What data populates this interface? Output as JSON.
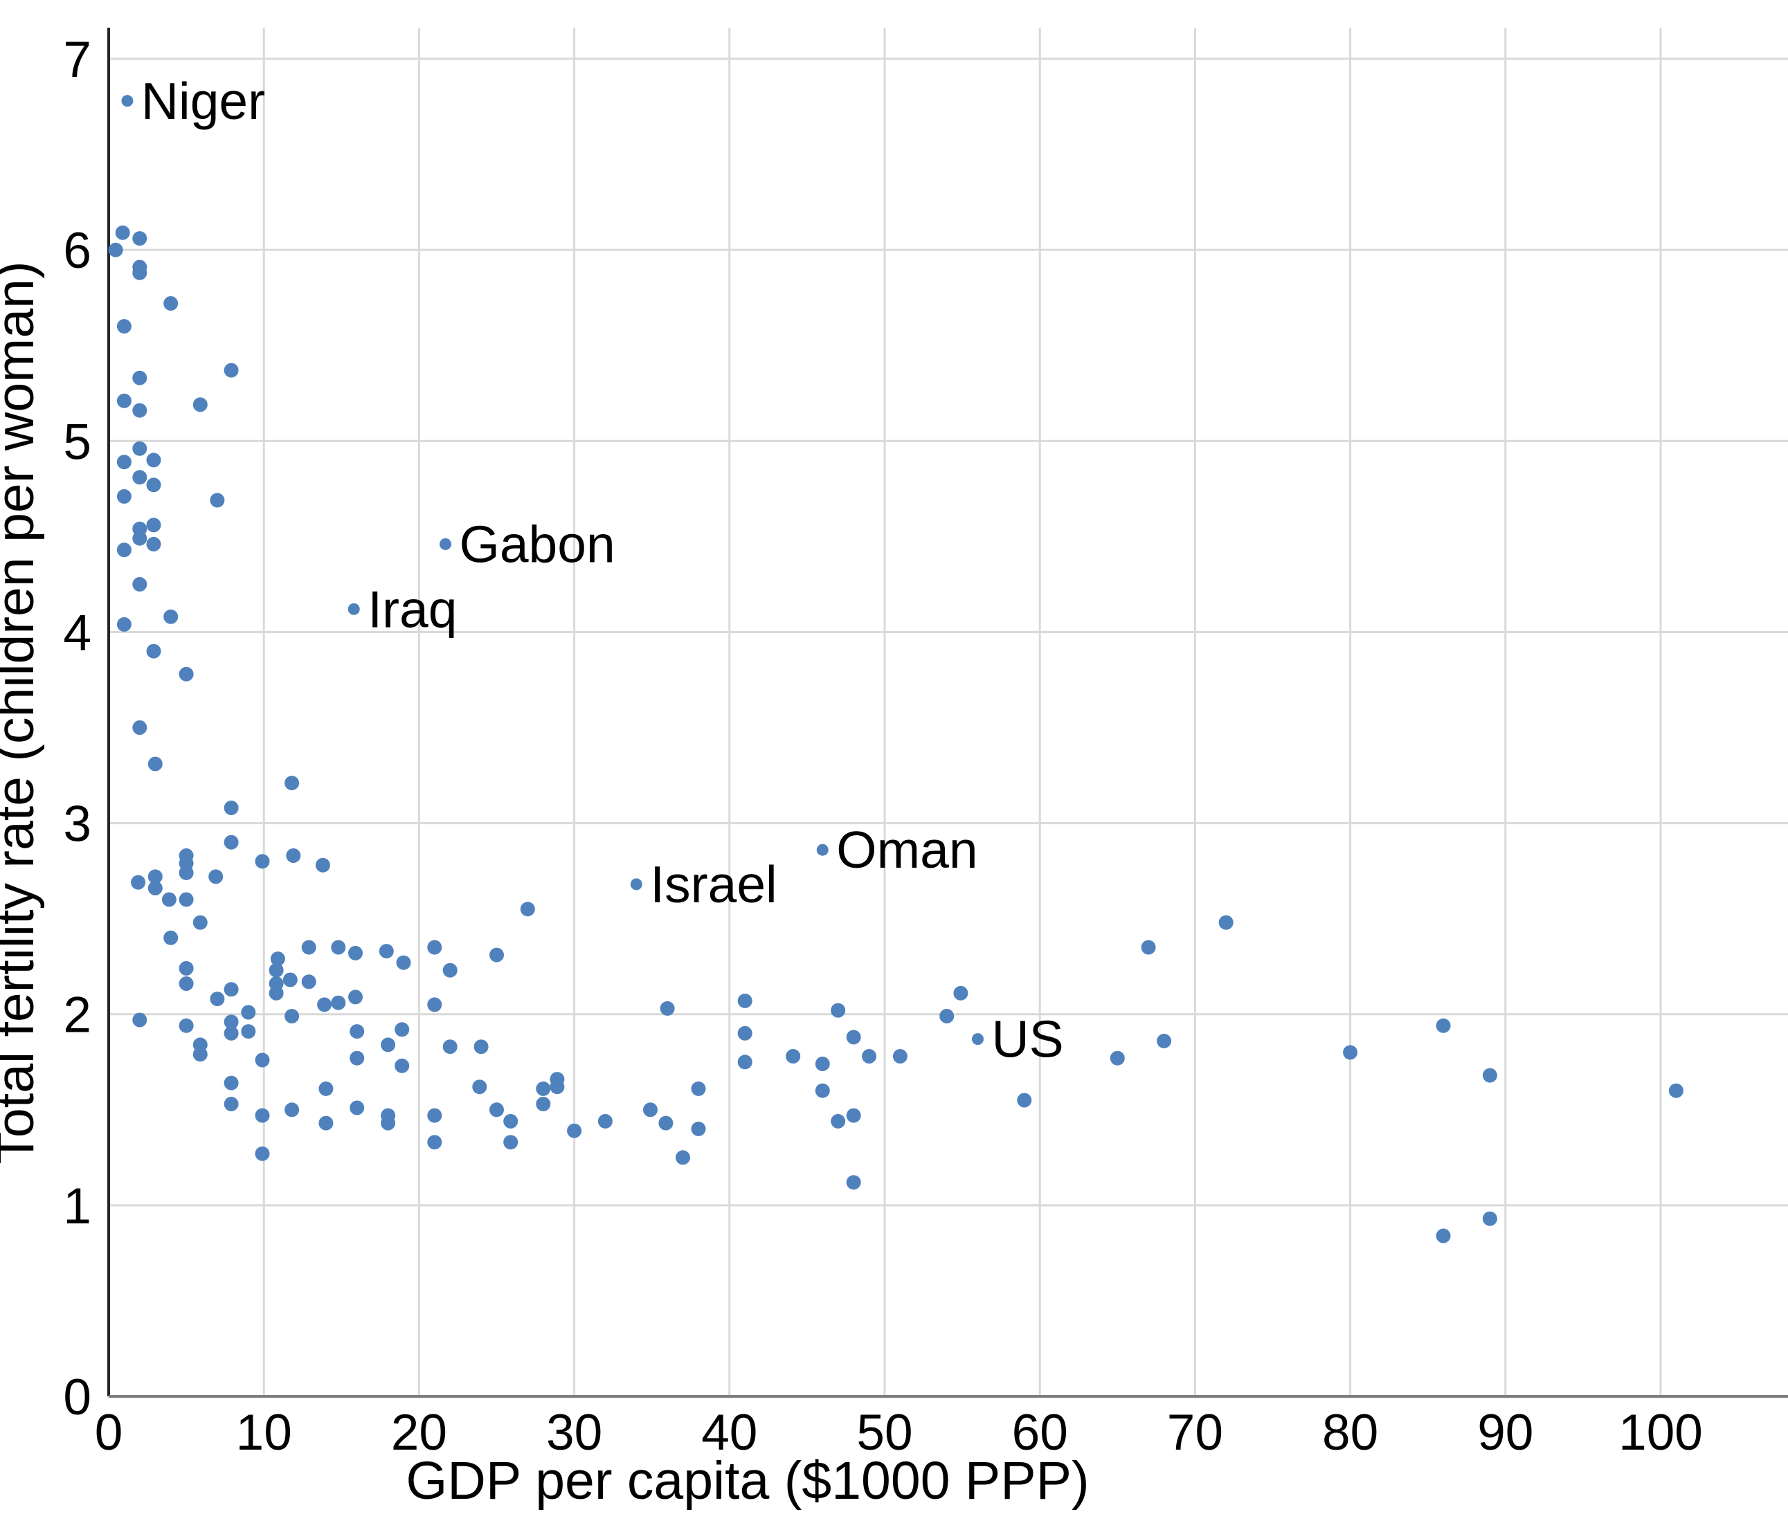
{
  "chart_data": {
    "type": "scatter",
    "title": "",
    "xlabel": "GDP per capita ($1000 PPP)",
    "ylabel": "Total fertility rate (children per woman)",
    "xlim": [
      0,
      108.2
    ],
    "ylim": [
      0,
      7.16
    ],
    "x_ticks": [
      0,
      10,
      20,
      30,
      40,
      50,
      60,
      70,
      80,
      90,
      100
    ],
    "y_ticks": [
      0,
      1,
      2,
      3,
      4,
      5,
      6,
      7
    ],
    "grid": true,
    "legend": "none",
    "point_color": "#4f81bd",
    "grid_color": "#d9d9d9",
    "x_axis_color": "#7f7f7f",
    "y_axis_color": "#262626",
    "points": [
      [
        0.45,
        6.0
      ],
      [
        0.9,
        6.09
      ],
      [
        2.0,
        6.06
      ],
      [
        2.0,
        5.91
      ],
      [
        2.0,
        5.88
      ],
      [
        4.0,
        5.72
      ],
      [
        1.0,
        5.6
      ],
      [
        7.9,
        5.37
      ],
      [
        2.0,
        5.33
      ],
      [
        1.0,
        5.21
      ],
      [
        5.9,
        5.19
      ],
      [
        2.0,
        5.16
      ],
      [
        2.0,
        4.96
      ],
      [
        2.9,
        4.9
      ],
      [
        1.0,
        4.89
      ],
      [
        2.0,
        4.81
      ],
      [
        2.9,
        4.77
      ],
      [
        1.0,
        4.71
      ],
      [
        7.0,
        4.69
      ],
      [
        2.9,
        4.56
      ],
      [
        2.0,
        4.54
      ],
      [
        2.0,
        4.49
      ],
      [
        2.9,
        4.46
      ],
      [
        1.0,
        4.43
      ],
      [
        2.0,
        4.25
      ],
      [
        4.0,
        4.08
      ],
      [
        1.0,
        4.04
      ],
      [
        2.9,
        3.9
      ],
      [
        5.0,
        3.78
      ],
      [
        2.0,
        3.5
      ],
      [
        3.0,
        3.31
      ],
      [
        11.8,
        3.21
      ],
      [
        7.9,
        3.08
      ],
      [
        7.9,
        2.9
      ],
      [
        9.9,
        2.8
      ],
      [
        11.9,
        2.83
      ],
      [
        13.8,
        2.78
      ],
      [
        5.0,
        2.83
      ],
      [
        5.0,
        2.79
      ],
      [
        5.0,
        2.74
      ],
      [
        6.9,
        2.72
      ],
      [
        3.0,
        2.72
      ],
      [
        3.0,
        2.66
      ],
      [
        1.9,
        2.69
      ],
      [
        3.9,
        2.6
      ],
      [
        5.0,
        2.6
      ],
      [
        5.9,
        2.48
      ],
      [
        4.0,
        2.4
      ],
      [
        27.0,
        2.55
      ],
      [
        72.0,
        2.48
      ],
      [
        12.9,
        2.35
      ],
      [
        14.8,
        2.35
      ],
      [
        67.0,
        2.35
      ],
      [
        10.9,
        2.29
      ],
      [
        15.9,
        2.32
      ],
      [
        17.9,
        2.33
      ],
      [
        19.0,
        2.27
      ],
      [
        21.0,
        2.35
      ],
      [
        22.0,
        2.23
      ],
      [
        25.0,
        2.31
      ],
      [
        5.0,
        2.24
      ],
      [
        5.0,
        2.16
      ],
      [
        10.8,
        2.23
      ],
      [
        11.7,
        2.18
      ],
      [
        10.8,
        2.16
      ],
      [
        12.9,
        2.17
      ],
      [
        13.9,
        2.05
      ],
      [
        14.8,
        2.06
      ],
      [
        15.9,
        2.09
      ],
      [
        21.0,
        2.05
      ],
      [
        36.0,
        2.03
      ],
      [
        41.0,
        2.07
      ],
      [
        47.0,
        2.02
      ],
      [
        54.0,
        1.99
      ],
      [
        54.9,
        2.11
      ],
      [
        2.0,
        1.97
      ],
      [
        11.8,
        1.99
      ],
      [
        7.9,
        2.13
      ],
      [
        7.0,
        2.08
      ],
      [
        9.0,
        2.01
      ],
      [
        10.8,
        2.11
      ],
      [
        16.0,
        1.91
      ],
      [
        18.9,
        1.92
      ],
      [
        18.0,
        1.84
      ],
      [
        16.0,
        1.77
      ],
      [
        18.9,
        1.73
      ],
      [
        22.0,
        1.83
      ],
      [
        24.0,
        1.83
      ],
      [
        5.0,
        1.94
      ],
      [
        7.9,
        1.96
      ],
      [
        7.9,
        1.9
      ],
      [
        9.0,
        1.91
      ],
      [
        5.9,
        1.84
      ],
      [
        5.9,
        1.79
      ],
      [
        9.9,
        1.76
      ],
      [
        41.0,
        1.9
      ],
      [
        41.0,
        1.75
      ],
      [
        44.1,
        1.78
      ],
      [
        46.0,
        1.74
      ],
      [
        48.0,
        1.88
      ],
      [
        49.0,
        1.78
      ],
      [
        51.0,
        1.78
      ],
      [
        65.0,
        1.77
      ],
      [
        68.0,
        1.86
      ],
      [
        80.0,
        1.8
      ],
      [
        86.0,
        1.94
      ],
      [
        23.9,
        1.62
      ],
      [
        28.0,
        1.61
      ],
      [
        28.9,
        1.66
      ],
      [
        28.9,
        1.62
      ],
      [
        28.0,
        1.53
      ],
      [
        38.0,
        1.61
      ],
      [
        89.0,
        1.68
      ],
      [
        7.9,
        1.64
      ],
      [
        7.9,
        1.53
      ],
      [
        14.0,
        1.61
      ],
      [
        16.0,
        1.51
      ],
      [
        25.0,
        1.5
      ],
      [
        34.9,
        1.5
      ],
      [
        46.0,
        1.6
      ],
      [
        59.0,
        1.55
      ],
      [
        101.0,
        1.6
      ],
      [
        38.0,
        1.4
      ],
      [
        37.0,
        1.25
      ],
      [
        9.9,
        1.47
      ],
      [
        11.8,
        1.5
      ],
      [
        14.0,
        1.43
      ],
      [
        18.0,
        1.47
      ],
      [
        18.0,
        1.43
      ],
      [
        21.0,
        1.47
      ],
      [
        21.0,
        1.33
      ],
      [
        25.9,
        1.44
      ],
      [
        25.9,
        1.33
      ],
      [
        30.0,
        1.39
      ],
      [
        32.0,
        1.44
      ],
      [
        35.9,
        1.43
      ],
      [
        47.0,
        1.44
      ],
      [
        48.0,
        1.47
      ],
      [
        9.9,
        1.27
      ],
      [
        48.0,
        1.12
      ],
      [
        86.0,
        0.84
      ],
      [
        89.0,
        0.93
      ]
    ],
    "labeled_points": [
      {
        "label": "Niger",
        "x": 1.2,
        "y": 6.78
      },
      {
        "label": "Gabon",
        "x": 21.7,
        "y": 4.46
      },
      {
        "label": "Iraq",
        "x": 15.8,
        "y": 4.12
      },
      {
        "label": "Israel",
        "x": 34.0,
        "y": 2.68
      },
      {
        "label": "Oman",
        "x": 46.0,
        "y": 2.86
      },
      {
        "label": "US",
        "x": 56.0,
        "y": 1.87
      }
    ]
  }
}
